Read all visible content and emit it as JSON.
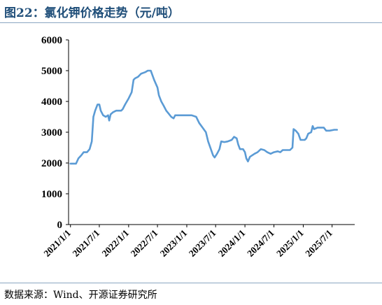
{
  "title": "图22：氯化钾价格走势（元/吨）",
  "source": "数据来源：Wind、开源证券研究所",
  "colors": {
    "line": "#5b9bd5",
    "title": "#1f4e79",
    "axis": "#000000"
  },
  "chart_data": {
    "type": "line",
    "title": "",
    "xlabel": "",
    "ylabel": "",
    "ylim": [
      0,
      6000
    ],
    "yticks": [
      0,
      1000,
      2000,
      3000,
      4000,
      5000,
      6000
    ],
    "xticks": [
      "2021/1/1",
      "2021/7/1",
      "2022/1/1",
      "2022/7/1",
      "2023/1/1",
      "2023/7/1",
      "2024/1/1",
      "2024/7/1",
      "2025/1/1",
      "2025/7/1"
    ],
    "grid": false,
    "legend": "none",
    "series": [
      {
        "values": [
          [
            "2021-01-01",
            1980
          ],
          [
            "2021-02-05",
            1980
          ],
          [
            "2021-02-20",
            2150
          ],
          [
            "2021-03-10",
            2250
          ],
          [
            "2021-03-25",
            2350
          ],
          [
            "2021-04-15",
            2350
          ],
          [
            "2021-05-01",
            2450
          ],
          [
            "2021-05-15",
            2700
          ],
          [
            "2021-05-25",
            3500
          ],
          [
            "2021-06-05",
            3700
          ],
          [
            "2021-06-20",
            3900
          ],
          [
            "2021-07-01",
            3900
          ],
          [
            "2021-07-10",
            3700
          ],
          [
            "2021-07-25",
            3550
          ],
          [
            "2021-08-10",
            3500
          ],
          [
            "2021-08-25",
            3550
          ],
          [
            "2021-09-01",
            3380
          ],
          [
            "2021-09-10",
            3580
          ],
          [
            "2021-09-25",
            3650
          ],
          [
            "2021-10-15",
            3700
          ],
          [
            "2021-11-15",
            3700
          ],
          [
            "2021-11-25",
            3750
          ],
          [
            "2021-12-10",
            3900
          ],
          [
            "2022-01-01",
            4100
          ],
          [
            "2022-01-20",
            4300
          ],
          [
            "2022-02-01",
            4700
          ],
          [
            "2022-02-10",
            4750
          ],
          [
            "2022-03-01",
            4800
          ],
          [
            "2022-03-20",
            4900
          ],
          [
            "2022-04-15",
            4950
          ],
          [
            "2022-05-01",
            5000
          ],
          [
            "2022-05-20",
            5000
          ],
          [
            "2022-06-10",
            4700
          ],
          [
            "2022-07-01",
            4450
          ],
          [
            "2022-07-10",
            4200
          ],
          [
            "2022-07-25",
            4000
          ],
          [
            "2022-08-10",
            3850
          ],
          [
            "2022-08-25",
            3700
          ],
          [
            "2022-09-10",
            3600
          ],
          [
            "2022-09-25",
            3500
          ],
          [
            "2022-10-10",
            3450
          ],
          [
            "2022-10-20",
            3550
          ],
          [
            "2022-11-15",
            3550
          ],
          [
            "2023-01-01",
            3550
          ],
          [
            "2023-02-01",
            3550
          ],
          [
            "2023-03-01",
            3500
          ],
          [
            "2023-03-20",
            3300
          ],
          [
            "2023-04-10",
            3150
          ],
          [
            "2023-05-01",
            3000
          ],
          [
            "2023-05-15",
            2700
          ],
          [
            "2023-06-01",
            2450
          ],
          [
            "2023-06-15",
            2250
          ],
          [
            "2023-06-25",
            2180
          ],
          [
            "2023-07-10",
            2300
          ],
          [
            "2023-07-25",
            2450
          ],
          [
            "2023-08-05",
            2700
          ],
          [
            "2023-08-25",
            2680
          ],
          [
            "2023-09-15",
            2700
          ],
          [
            "2023-10-10",
            2750
          ],
          [
            "2023-10-25",
            2850
          ],
          [
            "2023-11-10",
            2800
          ],
          [
            "2023-11-20",
            2600
          ],
          [
            "2023-12-01",
            2450
          ],
          [
            "2023-12-20",
            2450
          ],
          [
            "2024-01-01",
            2350
          ],
          [
            "2024-01-10",
            2150
          ],
          [
            "2024-01-20",
            2050
          ],
          [
            "2024-02-01",
            2200
          ],
          [
            "2024-03-01",
            2300
          ],
          [
            "2024-03-20",
            2350
          ],
          [
            "2024-04-10",
            2450
          ],
          [
            "2024-05-01",
            2420
          ],
          [
            "2024-05-20",
            2350
          ],
          [
            "2024-06-10",
            2300
          ],
          [
            "2024-07-01",
            2350
          ],
          [
            "2024-07-25",
            2380
          ],
          [
            "2024-08-10",
            2350
          ],
          [
            "2024-08-25",
            2420
          ],
          [
            "2024-09-15",
            2420
          ],
          [
            "2024-10-10",
            2420
          ],
          [
            "2024-10-25",
            2500
          ],
          [
            "2024-11-01",
            3100
          ],
          [
            "2024-11-15",
            3050
          ],
          [
            "2024-12-01",
            2950
          ],
          [
            "2024-12-15",
            2750
          ],
          [
            "2025-01-10",
            2750
          ],
          [
            "2025-01-20",
            2800
          ],
          [
            "2025-02-01",
            2950
          ],
          [
            "2025-02-20",
            3000
          ],
          [
            "2025-03-01",
            3200
          ],
          [
            "2025-03-10",
            3100
          ],
          [
            "2025-04-01",
            3150
          ],
          [
            "2025-05-10",
            3150
          ],
          [
            "2025-05-25",
            3050
          ],
          [
            "2025-06-15",
            3050
          ],
          [
            "2025-07-15",
            3080
          ],
          [
            "2025-08-01",
            3080
          ]
        ]
      }
    ]
  }
}
